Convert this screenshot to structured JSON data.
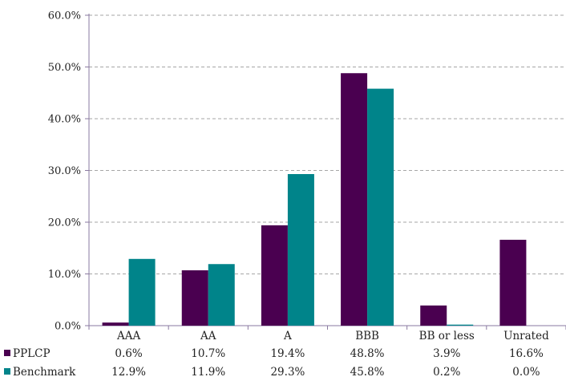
{
  "chart_data": {
    "type": "bar",
    "categories": [
      "AAA",
      "AA",
      "A",
      "BBB",
      "BB or less",
      "Unrated"
    ],
    "series": [
      {
        "name": "PPLCP",
        "color": "#4a0050",
        "values": [
          0.6,
          10.7,
          19.4,
          48.8,
          3.9,
          16.6
        ],
        "labels": [
          "0.6%",
          "10.7%",
          "19.4%",
          "48.8%",
          "3.9%",
          "16.6%"
        ]
      },
      {
        "name": "Benchmark",
        "color": "#00848a",
        "values": [
          12.9,
          11.9,
          29.3,
          45.8,
          0.2,
          0.0
        ],
        "labels": [
          "12.9%",
          "11.9%",
          "29.3%",
          "45.8%",
          "0.2%",
          "0.0%"
        ]
      }
    ],
    "ylim": [
      0,
      60
    ],
    "yticks": [
      0,
      10,
      20,
      30,
      40,
      50,
      60
    ],
    "ytick_labels": [
      "0.0%",
      "10.0%",
      "20.0%",
      "30.0%",
      "40.0%",
      "50.0%",
      "60.0%"
    ],
    "grid": true,
    "legend_placement": "bottom-left data table",
    "title": "",
    "xlabel": "",
    "ylabel": ""
  }
}
